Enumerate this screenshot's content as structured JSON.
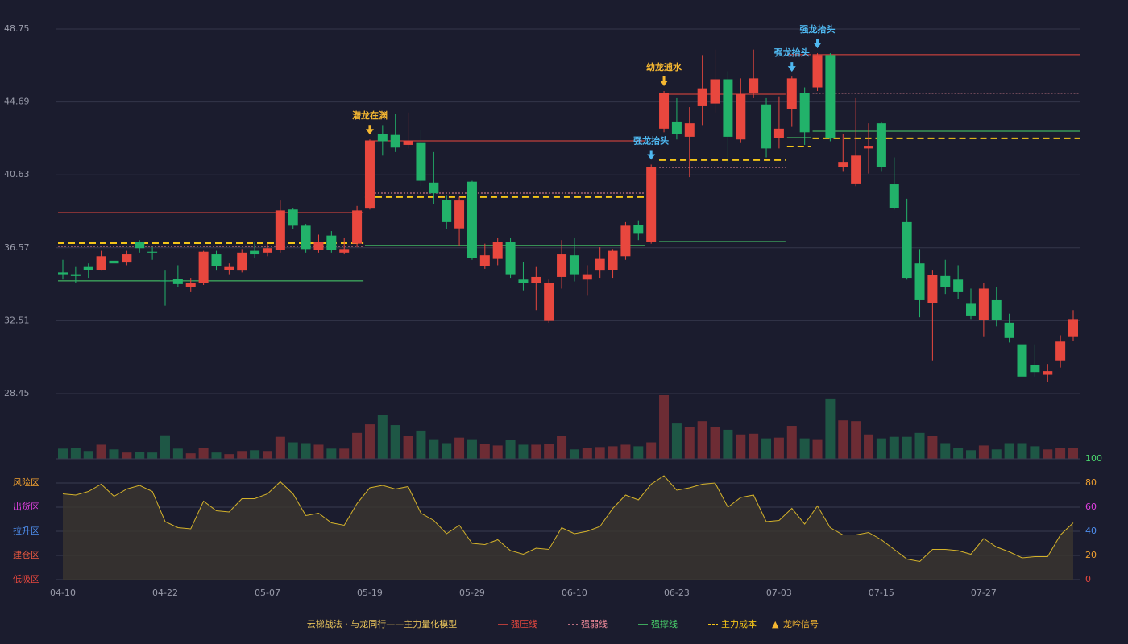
{
  "chart_data": {
    "type": "candlestick",
    "up_color": "#e8473e",
    "down_color": "#22b26a",
    "categories": [
      "04-10",
      null,
      null,
      null,
      null,
      null,
      null,
      null,
      "04-22",
      null,
      null,
      null,
      null,
      null,
      null,
      null,
      "05-07",
      null,
      null,
      null,
      null,
      null,
      null,
      null,
      "05-19",
      null,
      null,
      null,
      null,
      null,
      null,
      null,
      "05-29",
      null,
      null,
      null,
      null,
      null,
      null,
      null,
      "06-10",
      null,
      null,
      null,
      null,
      null,
      null,
      null,
      "06-23",
      null,
      null,
      null,
      null,
      null,
      null,
      null,
      "07-03",
      null,
      null,
      null,
      null,
      null,
      null,
      null,
      "07-15",
      null,
      null,
      null,
      null,
      null,
      null,
      null,
      "07-27",
      null,
      null,
      null,
      null,
      null,
      null,
      null
    ],
    "open": [
      35.2,
      35.1,
      35.5,
      35.35,
      35.85,
      35.75,
      36.9,
      36.35,
      34.75,
      34.85,
      34.4,
      34.6,
      36.2,
      35.35,
      35.3,
      36.4,
      36.3,
      36.45,
      38.7,
      37.8,
      36.45,
      37.25,
      36.3,
      36.8,
      38.75,
      42.9,
      42.85,
      42.3,
      42.4,
      40.2,
      39.25,
      37.65,
      40.25,
      35.55,
      35.95,
      36.9,
      34.8,
      34.6,
      32.5,
      34.95,
      36.15,
      34.8,
      35.3,
      35.35,
      36.1,
      37.85,
      36.9,
      43.2,
      43.6,
      42.75,
      44.45,
      44.6,
      45.95,
      42.6,
      45.2,
      44.55,
      42.7,
      44.3,
      45.2,
      45.5,
      47.3,
      41.05,
      40.15,
      42.1,
      43.5,
      40.1,
      38.0,
      35.7,
      33.5,
      35.0,
      34.8,
      33.45,
      32.55,
      33.65,
      32.4,
      31.2,
      30.05,
      29.5,
      30.3,
      31.6
    ],
    "high": [
      35.9,
      35.5,
      35.7,
      36.4,
      36.1,
      36.4,
      37.0,
      36.6,
      35.3,
      35.6,
      34.9,
      36.4,
      36.4,
      35.7,
      36.5,
      36.9,
      36.8,
      39.2,
      38.8,
      37.9,
      37.3,
      37.5,
      37.1,
      38.9,
      42.6,
      43.4,
      44.0,
      44.1,
      43.1,
      41.9,
      39.5,
      39.4,
      40.3,
      36.8,
      37.1,
      37.1,
      35.8,
      35.5,
      34.8,
      37.0,
      37.1,
      35.6,
      36.6,
      36.5,
      38.0,
      38.1,
      41.2,
      45.3,
      44.9,
      44.4,
      47.3,
      47.6,
      46.4,
      46.0,
      47.6,
      44.9,
      45.0,
      46.1,
      45.5,
      47.4,
      47.4,
      42.9,
      44.9,
      43.5,
      43.6,
      41.6,
      39.3,
      36.5,
      35.3,
      35.9,
      35.6,
      34.3,
      34.6,
      34.4,
      32.9,
      31.8,
      31.2,
      30.1,
      31.7,
      33.1
    ],
    "low": [
      34.8,
      34.6,
      34.9,
      35.3,
      35.5,
      35.6,
      36.3,
      35.9,
      33.35,
      34.4,
      34.1,
      34.5,
      35.3,
      35.1,
      35.2,
      36.0,
      36.1,
      36.3,
      37.6,
      36.3,
      36.3,
      36.3,
      36.2,
      36.6,
      38.7,
      41.7,
      41.9,
      42.1,
      40.0,
      39.0,
      37.6,
      36.7,
      35.9,
      35.4,
      35.6,
      34.9,
      34.2,
      33.1,
      32.4,
      34.3,
      34.7,
      33.9,
      34.9,
      34.9,
      35.9,
      37.0,
      36.8,
      43.0,
      42.6,
      40.5,
      43.4,
      44.1,
      41.3,
      42.4,
      44.9,
      41.6,
      42.1,
      43.3,
      42.3,
      45.3,
      42.5,
      40.8,
      40.0,
      40.7,
      40.8,
      38.7,
      34.8,
      32.7,
      30.3,
      34.0,
      33.7,
      32.6,
      31.6,
      32.2,
      31.3,
      29.1,
      29.4,
      29.1,
      29.9,
      31.4
    ],
    "close": [
      35.1,
      35.0,
      35.35,
      36.1,
      35.7,
      36.2,
      36.55,
      36.3,
      34.7,
      34.55,
      34.6,
      36.35,
      35.55,
      35.5,
      36.3,
      36.2,
      36.55,
      38.65,
      37.8,
      36.5,
      36.9,
      36.45,
      36.5,
      38.65,
      42.5,
      42.5,
      42.15,
      42.5,
      40.3,
      39.6,
      38.0,
      39.2,
      36.0,
      36.15,
      36.9,
      35.1,
      34.6,
      34.95,
      34.6,
      36.2,
      35.1,
      35.1,
      35.95,
      36.4,
      37.8,
      37.35,
      41.05,
      45.2,
      42.9,
      43.5,
      45.45,
      45.95,
      42.75,
      45.1,
      46.0,
      42.1,
      43.2,
      46.0,
      43.0,
      47.3,
      42.65,
      41.35,
      41.7,
      42.25,
      41.05,
      38.8,
      34.9,
      33.65,
      35.05,
      34.4,
      34.1,
      32.8,
      34.3,
      32.55,
      31.55,
      29.4,
      29.65,
      29.7,
      31.35,
      32.6
    ],
    "ylim": [
      28.45,
      48.75
    ],
    "yticks": [
      28.45,
      32.51,
      36.57,
      40.63,
      44.69,
      48.75
    ],
    "grid": true,
    "volume": [
      13,
      14,
      10,
      18,
      12,
      8,
      9,
      8,
      30,
      13,
      7,
      14,
      8,
      6,
      10,
      11,
      10,
      28,
      21,
      20,
      18,
      13,
      13,
      33,
      44,
      56,
      43,
      29,
      36,
      25,
      20,
      27,
      25,
      19,
      17,
      24,
      18,
      18,
      19,
      29,
      12,
      14,
      15,
      16,
      18,
      16,
      21,
      81,
      45,
      41,
      48,
      41,
      37,
      31,
      32,
      26,
      27,
      42,
      26,
      25,
      76,
      49,
      48,
      31,
      26,
      28,
      28,
      33,
      29,
      20,
      14,
      11,
      17,
      12,
      20,
      20,
      16,
      12,
      14,
      14
    ],
    "levels": [
      {
        "name": "强压线",
        "color": "#e8473e",
        "style": "solid",
        "segments": [
          {
            "start": 0,
            "end": 23,
            "value": 38.53
          },
          {
            "start": 24,
            "end": 45,
            "value": 42.52
          },
          {
            "start": 47,
            "end": 56,
            "value": 45.12
          },
          {
            "start": 57,
            "end": 58,
            "value": 47.32
          },
          {
            "start": 59,
            "end": 79,
            "value": 47.32
          }
        ]
      },
      {
        "name": "强弱线",
        "color": "#f08a9a",
        "style": "dotted",
        "segments": [
          {
            "start": 0,
            "end": 23,
            "value": 36.65
          },
          {
            "start": 24,
            "end": 45,
            "value": 39.61
          },
          {
            "start": 47,
            "end": 56,
            "value": 41.04
          },
          {
            "start": 59,
            "end": 79,
            "value": 45.17
          }
        ]
      },
      {
        "name": "强撑线",
        "color": "#4ad66d",
        "style": "solid",
        "segments": [
          {
            "start": 0,
            "end": 23,
            "value": 34.73
          },
          {
            "start": 24,
            "end": 45,
            "value": 36.7
          },
          {
            "start": 47,
            "end": 56,
            "value": 36.92
          },
          {
            "start": 57,
            "end": 58,
            "value": 42.7
          },
          {
            "start": 59,
            "end": 79,
            "value": 43.06
          }
        ]
      },
      {
        "name": "主力成本",
        "color": "#f5c518",
        "style": "dashed",
        "segments": [
          {
            "start": 0,
            "end": 23,
            "value": 36.83
          },
          {
            "start": 24,
            "end": 45,
            "value": 39.39
          },
          {
            "start": 47,
            "end": 56,
            "value": 41.45
          },
          {
            "start": 57,
            "end": 58,
            "value": 42.21
          },
          {
            "start": 59,
            "end": 79,
            "value": 42.66
          }
        ]
      }
    ],
    "signals": [
      {
        "index": 24,
        "label": "潜龙在渊",
        "color": "#f5b731"
      },
      {
        "index": 46,
        "label": "强龙抬头",
        "color": "#4fb8f0"
      },
      {
        "index": 47,
        "label": "幼龙逋水",
        "color": "#f5b731"
      },
      {
        "index": 57,
        "label": "强龙抬头",
        "color": "#4fb8f0"
      },
      {
        "index": 59,
        "label": "强龙抬头",
        "color": "#4fb8f0"
      }
    ],
    "oscillator": {
      "values": [
        71,
        70,
        73,
        79,
        69,
        75,
        78,
        73,
        48,
        43,
        42,
        65,
        57,
        56,
        67,
        67,
        71,
        81,
        71,
        53,
        55,
        47,
        45,
        63,
        76,
        78,
        75,
        77,
        55,
        49,
        38,
        45,
        30,
        29,
        33,
        24,
        21,
        26,
        25,
        43,
        38,
        40,
        44,
        59,
        70,
        66,
        79,
        86,
        74,
        76,
        79,
        80,
        60,
        68,
        70,
        48,
        49,
        59,
        46,
        61,
        43,
        37,
        37,
        39,
        33,
        25,
        17,
        15,
        25,
        25,
        24,
        21,
        34,
        27,
        23,
        18,
        19,
        19,
        37,
        47
      ],
      "color": "#d4b22a",
      "ylim": [
        0,
        100
      ],
      "yticks": [
        0,
        20,
        40,
        60,
        80,
        100
      ],
      "ytick_colors": [
        "#e8473e",
        "#f0a030",
        "#4f8ff0",
        "#e040e0",
        "#f0a030",
        "#4ad66d"
      ],
      "zones": [
        {
          "value": 80,
          "label": "风险区",
          "color": "#f0a030"
        },
        {
          "value": 60,
          "label": "出货区",
          "color": "#e040e0"
        },
        {
          "value": 40,
          "label": "拉升区",
          "color": "#4f8ff0"
        },
        {
          "value": 20,
          "label": "建仓区",
          "color": "#f05a40"
        },
        {
          "value": 0,
          "label": "低吸区",
          "color": "#e8473e"
        }
      ]
    },
    "legend_title": "云梯战法 · 与龙同行——主力量化模型",
    "signal_legend": "龙吟信号",
    "signal_marker": "▲"
  }
}
